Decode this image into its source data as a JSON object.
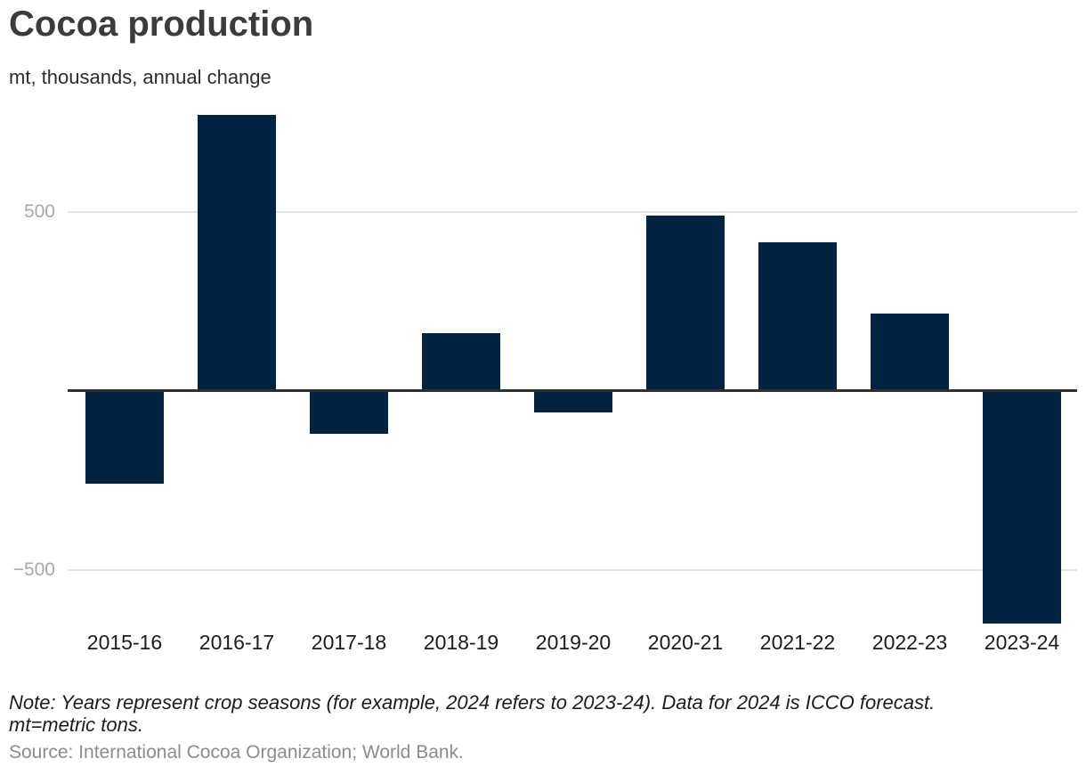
{
  "header": {
    "title": "Cocoa production",
    "subtitle": "mt, thousands, annual change"
  },
  "chart_data": {
    "type": "bar",
    "title": "Cocoa production",
    "subtitle_unit_label": "mt, thousands, annual change",
    "categories": [
      "2015-16",
      "2016-17",
      "2017-18",
      "2018-19",
      "2019-20",
      "2020-21",
      "2021-22",
      "2022-23",
      "2023-24"
    ],
    "values": [
      -260,
      770,
      -120,
      160,
      -60,
      490,
      415,
      215,
      -650
    ],
    "series_name": "Annual change in cocoa production (mt, thousands)",
    "yticks": [
      {
        "value": 500,
        "label": "500"
      },
      {
        "value": -500,
        "label": "−500"
      }
    ],
    "ylim": [
      -700,
      820
    ],
    "xlabel": "",
    "ylabel": "mt, thousands, annual change",
    "grid": "horizontal-gridlines-at-yticks",
    "legend": "none",
    "bar_color": "#022442",
    "zero_axis_color": "#2f2f2f",
    "gridline_color": "#e4e4e4",
    "ytick_label_color": "#a8a8a8",
    "xtick_label_color": "#1c1c1c"
  },
  "footer": {
    "note_lines": [
      "Note: Years represent crop seasons (for example, 2024 refers to 2023-24). Data for 2024 is ICCO forecast.",
      "mt=metric tons."
    ],
    "source": "Source: International Cocoa Organization; World Bank."
  }
}
